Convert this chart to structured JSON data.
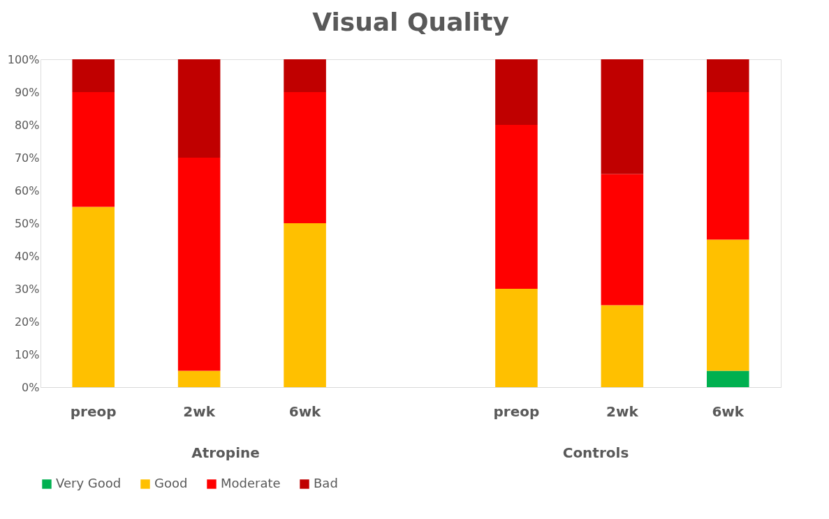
{
  "chart_data": {
    "type": "bar",
    "title": "Visual Quality",
    "stacked": true,
    "categories": [
      "preop",
      "2wk",
      "6wk",
      null,
      "preop",
      "2wk",
      "6wk"
    ],
    "series": [
      {
        "name": "Very Good",
        "color": "#00b050",
        "values": [
          null,
          null,
          null,
          null,
          null,
          null,
          5
        ]
      },
      {
        "name": "Good",
        "color": "#ffc000",
        "values": [
          55,
          5,
          50,
          null,
          30,
          25,
          40
        ]
      },
      {
        "name": "Moderate",
        "color": "#ff0000",
        "values": [
          35,
          65,
          40,
          null,
          50,
          40,
          45
        ]
      },
      {
        "name": "Bad",
        "color": "#c00000",
        "values": [
          10,
          30,
          10,
          null,
          20,
          35,
          10
        ]
      }
    ],
    "ylim": [
      0,
      100
    ],
    "yticks": [
      {
        "value": 0,
        "label": "0%"
      },
      {
        "value": 10,
        "label": "10%"
      },
      {
        "value": 20,
        "label": "20%"
      },
      {
        "value": 30,
        "label": "30%"
      },
      {
        "value": 40,
        "label": "40%"
      },
      {
        "value": 50,
        "label": "50%"
      },
      {
        "value": 60,
        "label": "60%"
      },
      {
        "value": 70,
        "label": "70%"
      },
      {
        "value": 80,
        "label": "80%"
      },
      {
        "value": 90,
        "label": "90%"
      },
      {
        "value": 100,
        "label": "100%"
      }
    ],
    "annotations": [
      "Atropine",
      "Controls"
    ],
    "grid": false,
    "legend": "bottom"
  }
}
